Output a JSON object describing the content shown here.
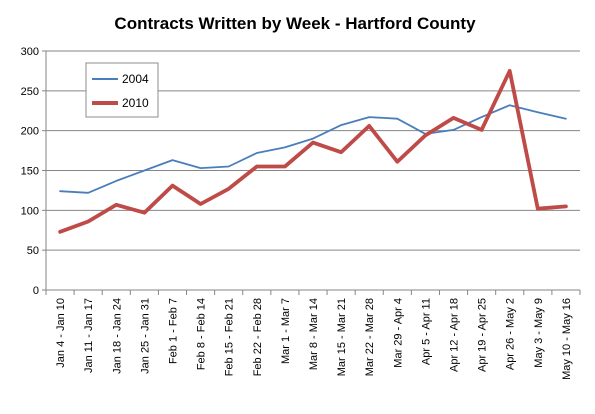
{
  "chart_data": {
    "type": "line",
    "title": "Contracts Written by Week - Hartford County",
    "xlabel": "",
    "ylabel": "",
    "categories": [
      "Jan 4 - Jan 10",
      "Jan 11 - Jan 17",
      "Jan 18 - Jan 24",
      "Jan 25 - Jan 31",
      "Feb 1 - Feb 7",
      "Feb 8 - Feb 14",
      "Feb 15 - Feb 21",
      "Feb 22 - Feb 28",
      "Mar 1 - Mar 7",
      "Mar 8 - Mar 14",
      "Mar 15 - Mar 21",
      "Mar 22 - Mar 28",
      "Mar 29 - Apr 4",
      "Apr 5 - Apr 11",
      "Apr 12 - Apr 18",
      "Apr 19 - Apr 25",
      "Apr 26 - May 2",
      "May 3 - May 9",
      "May 10 - May 16"
    ],
    "series": [
      {
        "name": "2004",
        "color": "#4a7ebb",
        "values": [
          124,
          122,
          137,
          150,
          163,
          153,
          155,
          172,
          179,
          190,
          207,
          217,
          215,
          196,
          201,
          217,
          232,
          223,
          215
        ]
      },
      {
        "name": "2010",
        "color": "#be4b48",
        "values": [
          73,
          86,
          107,
          97,
          131,
          108,
          127,
          155,
          155,
          185,
          173,
          206,
          161,
          194,
          216,
          201,
          275,
          102,
          105
        ]
      }
    ],
    "ylim": [
      0,
      300
    ],
    "yticks": [
      "0",
      "50",
      "100",
      "150",
      "200",
      "250",
      "300"
    ],
    "grid": true,
    "legend_position": "top-left"
  }
}
